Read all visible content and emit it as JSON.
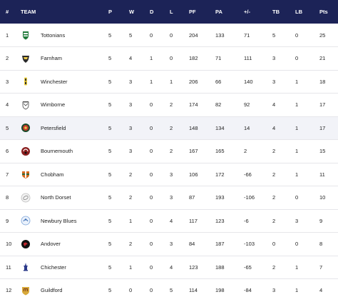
{
  "headers": {
    "pos": "#",
    "team": "TEAM",
    "p": "P",
    "w": "W",
    "d": "D",
    "l": "L",
    "pf": "PF",
    "pa": "PA",
    "diff": "+/-",
    "tb": "TB",
    "lb": "LB",
    "pts": "Pts"
  },
  "colors": {
    "header_bg": "#1c2357",
    "highlight_row": "#f2f3f8"
  },
  "rows": [
    {
      "pos": "1",
      "team": "Tottonians",
      "icon": "tottonians-crest-icon",
      "p": "5",
      "w": "5",
      "d": "0",
      "l": "0",
      "pf": "204",
      "pa": "133",
      "diff": "71",
      "tb": "5",
      "lb": "0",
      "pts": "25"
    },
    {
      "pos": "2",
      "team": "Farnham",
      "icon": "farnham-crest-icon",
      "p": "5",
      "w": "4",
      "d": "1",
      "l": "0",
      "pf": "182",
      "pa": "71",
      "diff": "111",
      "tb": "3",
      "lb": "0",
      "pts": "21"
    },
    {
      "pos": "3",
      "team": "Winchester",
      "icon": "winchester-crest-icon",
      "p": "5",
      "w": "3",
      "d": "1",
      "l": "1",
      "pf": "206",
      "pa": "66",
      "diff": "140",
      "tb": "3",
      "lb": "1",
      "pts": "18"
    },
    {
      "pos": "4",
      "team": "Wimborne",
      "icon": "wimborne-crest-icon",
      "p": "5",
      "w": "3",
      "d": "0",
      "l": "2",
      "pf": "174",
      "pa": "82",
      "diff": "92",
      "tb": "4",
      "lb": "1",
      "pts": "17"
    },
    {
      "pos": "5",
      "team": "Petersfield",
      "icon": "petersfield-crest-icon",
      "p": "5",
      "w": "3",
      "d": "0",
      "l": "2",
      "pf": "148",
      "pa": "134",
      "diff": "14",
      "tb": "4",
      "lb": "1",
      "pts": "17",
      "highlight": true
    },
    {
      "pos": "6",
      "team": "Bournemouth",
      "icon": "bournemouth-crest-icon",
      "p": "5",
      "w": "3",
      "d": "0",
      "l": "2",
      "pf": "167",
      "pa": "165",
      "diff": "2",
      "tb": "2",
      "lb": "1",
      "pts": "15"
    },
    {
      "pos": "7",
      "team": "Chobham",
      "icon": "chobham-crest-icon",
      "p": "5",
      "w": "2",
      "d": "0",
      "l": "3",
      "pf": "106",
      "pa": "172",
      "diff": "-66",
      "tb": "2",
      "lb": "1",
      "pts": "11"
    },
    {
      "pos": "8",
      "team": "North Dorset",
      "icon": "north-dorset-crest-icon",
      "p": "5",
      "w": "2",
      "d": "0",
      "l": "3",
      "pf": "87",
      "pa": "193",
      "diff": "-106",
      "tb": "2",
      "lb": "0",
      "pts": "10"
    },
    {
      "pos": "9",
      "team": "Newbury Blues",
      "icon": "newbury-blues-crest-icon",
      "p": "5",
      "w": "1",
      "d": "0",
      "l": "4",
      "pf": "117",
      "pa": "123",
      "diff": "-6",
      "tb": "2",
      "lb": "3",
      "pts": "9"
    },
    {
      "pos": "10",
      "team": "Andover",
      "icon": "andover-crest-icon",
      "p": "5",
      "w": "2",
      "d": "0",
      "l": "3",
      "pf": "84",
      "pa": "187",
      "diff": "-103",
      "tb": "0",
      "lb": "0",
      "pts": "8"
    },
    {
      "pos": "11",
      "team": "Chichester",
      "icon": "chichester-crest-icon",
      "p": "5",
      "w": "1",
      "d": "0",
      "l": "4",
      "pf": "123",
      "pa": "188",
      "diff": "-65",
      "tb": "2",
      "lb": "1",
      "pts": "7"
    },
    {
      "pos": "12",
      "team": "Guildford",
      "icon": "guildford-crest-icon",
      "p": "5",
      "w": "0",
      "d": "0",
      "l": "5",
      "pf": "114",
      "pa": "198",
      "diff": "-84",
      "tb": "3",
      "lb": "1",
      "pts": "4"
    }
  ]
}
